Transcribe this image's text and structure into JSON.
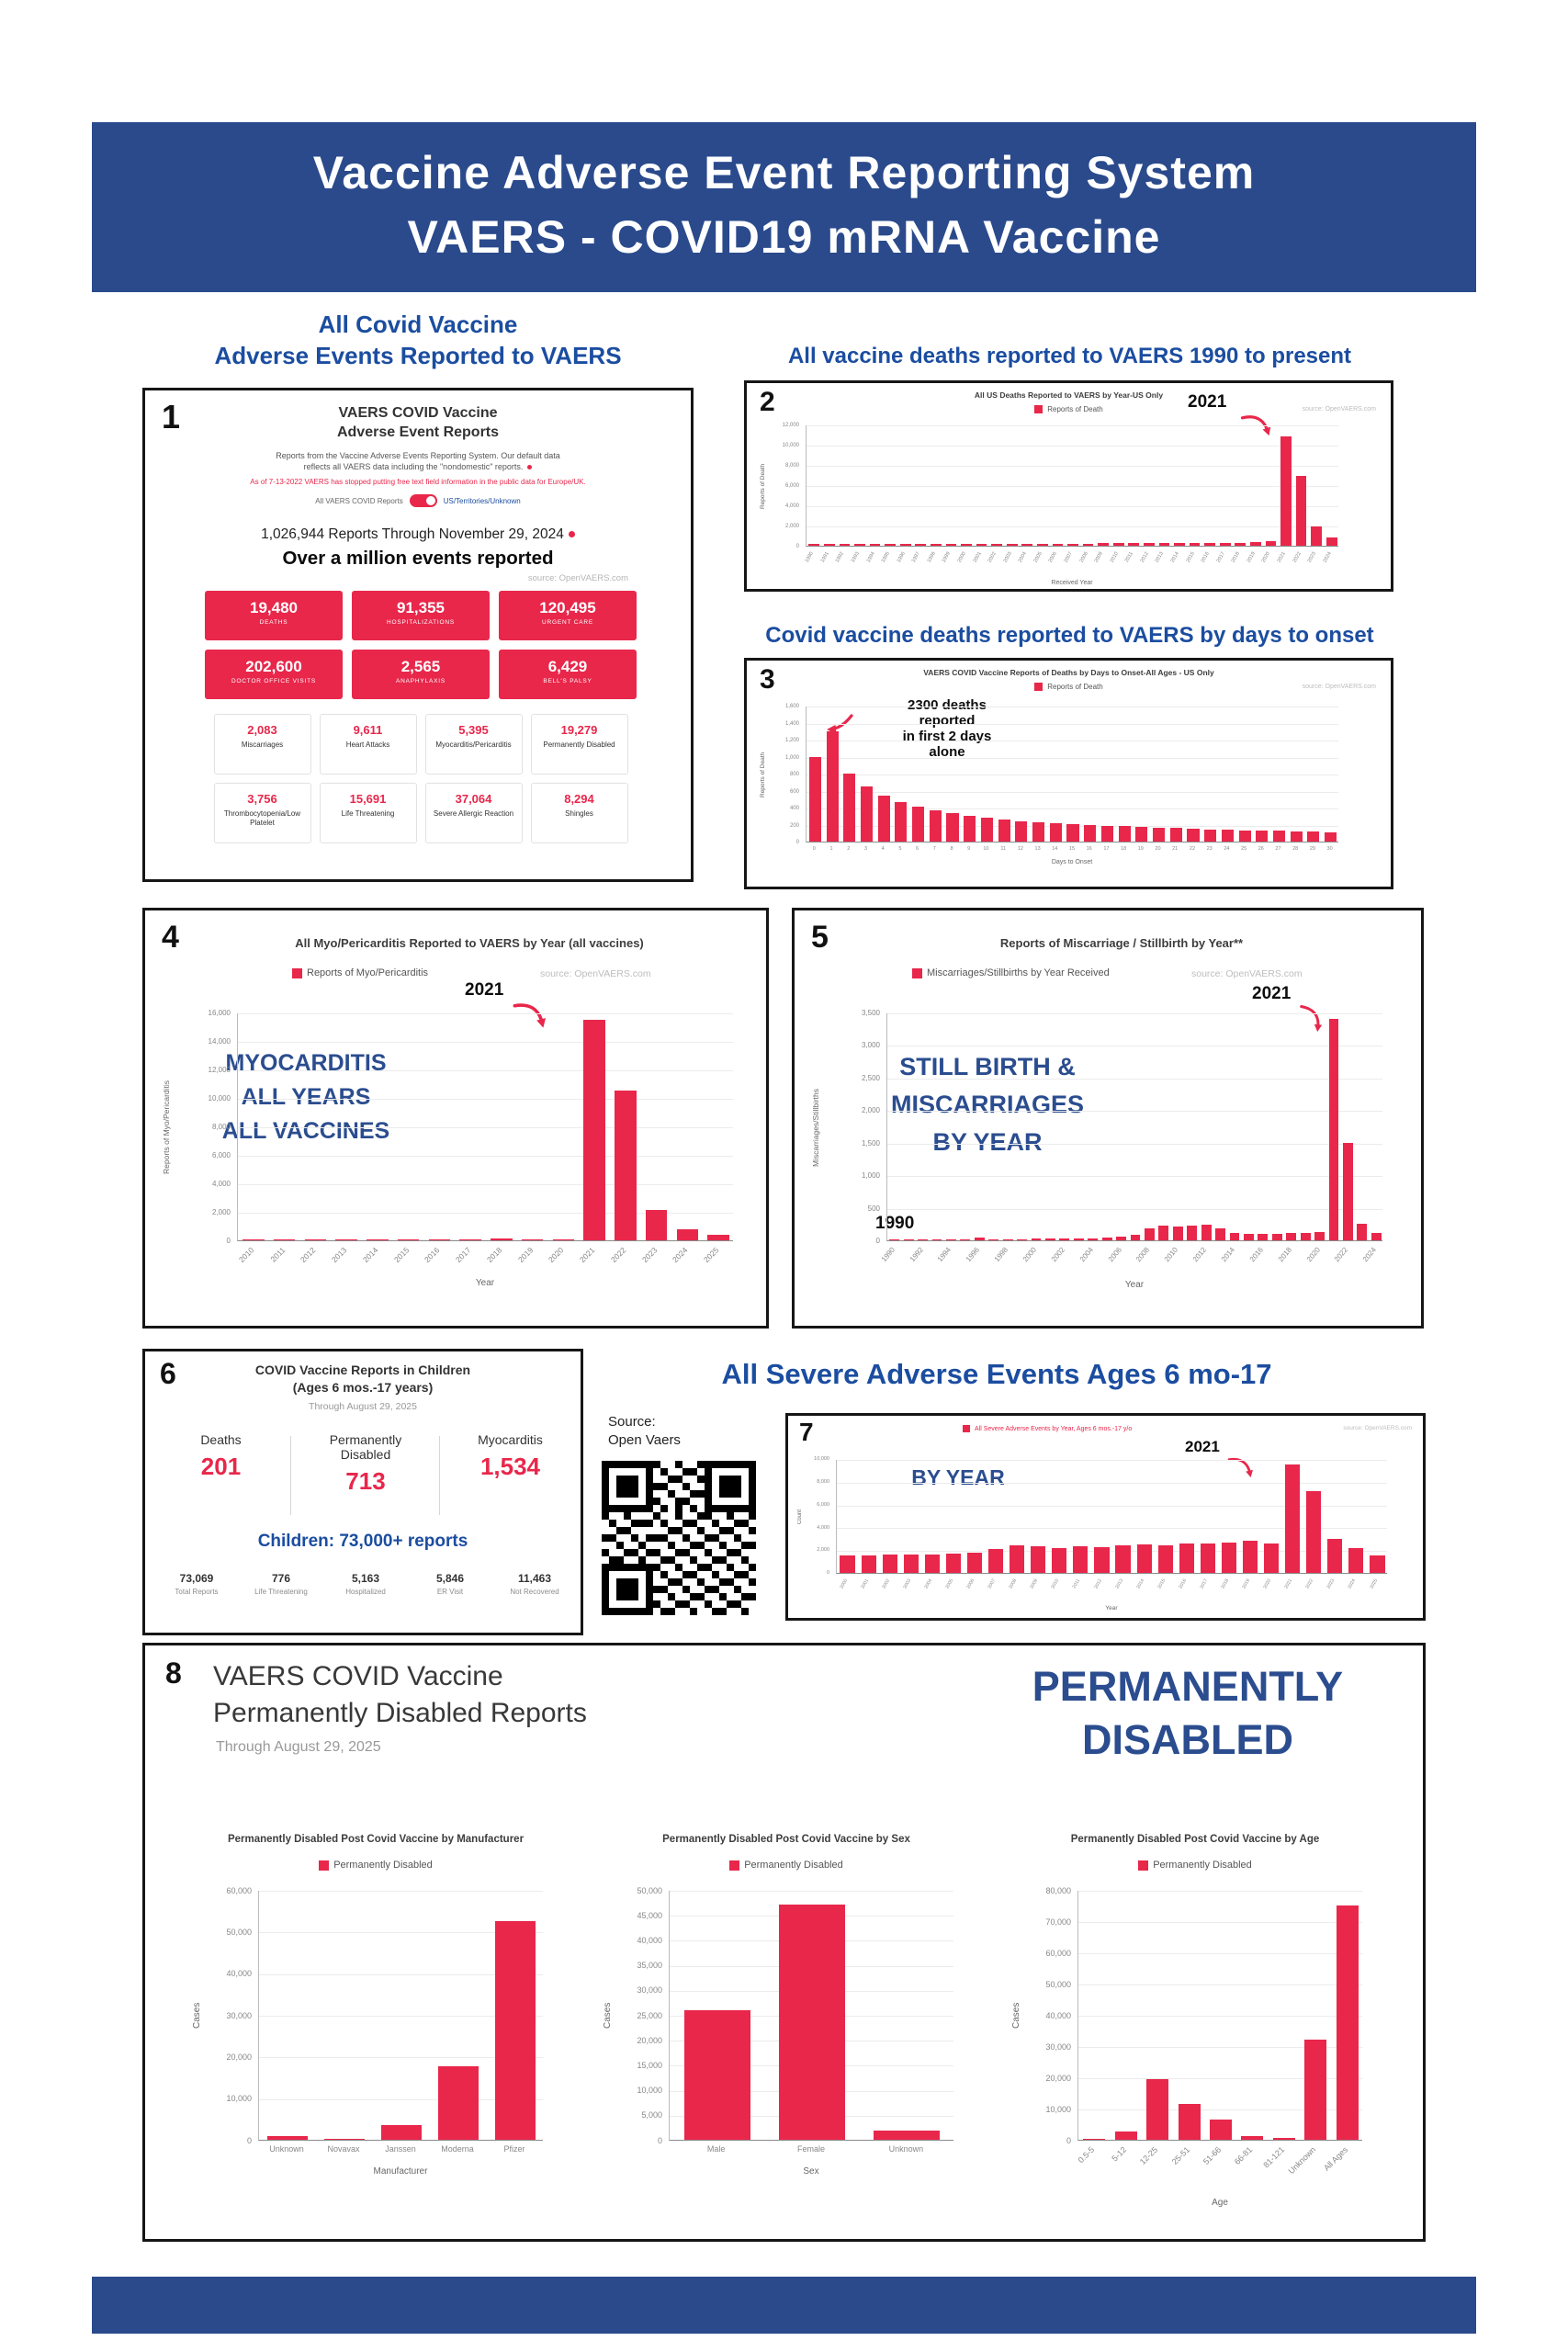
{
  "colors": {
    "banner_blue": "#2a4a8c",
    "heading_blue": "#1b4da0",
    "big_text_blue": "#2b4d8f",
    "accent_red": "#e8274b"
  },
  "header": {
    "line1": "Vaccine Adverse Event Reporting System",
    "line2": "VAERS - COVID19 mRNA Vaccine"
  },
  "panel1": {
    "number": "1",
    "heading_line1": "All Covid Vaccine",
    "heading_line2": "Adverse Events Reported to VAERS",
    "card_title_line1": "VAERS COVID Vaccine",
    "card_title_line2": "Adverse Event Reports",
    "desc_line1": "Reports from the Vaccine Adverse Events Reporting System. Our default data",
    "desc_line2": "reflects all VAERS data including the \"nondomestic\" reports.",
    "red_note": "As of 7-13-2022 VAERS has stopped putting free text field information in the public data for Europe/UK.",
    "toggle_left": "All VAERS COVID Reports",
    "toggle_right": "US/Territories/Unknown",
    "reports_line": "1,026,944 Reports Through November 29, 2024",
    "big_line": "Over a million events reported",
    "source": "source: OpenVAERS.com",
    "big_stats": [
      {
        "value": "19,480",
        "label": "DEATHS"
      },
      {
        "value": "91,355",
        "label": "HOSPITALIZATIONS"
      },
      {
        "value": "120,495",
        "label": "URGENT CARE"
      },
      {
        "value": "202,600",
        "label": "DOCTOR OFFICE VISITS"
      },
      {
        "value": "2,565",
        "label": "ANAPHYLAXIS"
      },
      {
        "value": "6,429",
        "label": "BELL'S PALSY"
      }
    ],
    "small_stats": [
      {
        "value": "2,083",
        "label": "Miscarriages"
      },
      {
        "value": "9,611",
        "label": "Heart Attacks"
      },
      {
        "value": "5,395",
        "label": "Myocarditis/Pericarditis"
      },
      {
        "value": "19,279",
        "label": "Permanently Disabled"
      },
      {
        "value": "3,756",
        "label": "Thrombocytopenia/Low Platelet"
      },
      {
        "value": "15,691",
        "label": "Life Threatening"
      },
      {
        "value": "37,064",
        "label": "Severe Allergic Reaction"
      },
      {
        "value": "8,294",
        "label": "Shingles"
      }
    ]
  },
  "panel2": {
    "number": "2",
    "heading": "All vaccine deaths reported to VAERS 1990 to present"
  },
  "panel3": {
    "number": "3",
    "heading": "Covid vaccine deaths reported to VAERS by days to onset"
  },
  "panel4": {
    "number": "4"
  },
  "panel5": {
    "number": "5"
  },
  "panel6": {
    "number": "6",
    "title_line1": "COVID Vaccine Reports in Children",
    "title_line2": "(Ages 6 mos.-17 years)",
    "through": "Through August 29, 2025",
    "stats": [
      {
        "label": "Deaths",
        "value": "201"
      },
      {
        "label": "Permanently Disabled",
        "value": "713"
      },
      {
        "label": "Myocarditis",
        "value": "1,534"
      }
    ],
    "children_line": "Children: 73,000+ reports",
    "bottom_stats": [
      {
        "value": "73,069",
        "label": "Total Reports"
      },
      {
        "value": "776",
        "label": "Life Threatening"
      },
      {
        "value": "5,163",
        "label": "Hospitalized"
      },
      {
        "value": "5,846",
        "label": "ER Visit"
      },
      {
        "value": "11,463",
        "label": "Not Recovered"
      }
    ]
  },
  "severe": {
    "heading": "All Severe Adverse Events Ages 6 mo-17",
    "source_line1": "Source:",
    "source_line2": "Open Vaers"
  },
  "panel7": {
    "number": "7"
  },
  "panel8": {
    "number": "8",
    "title": "VAERS COVID Vaccine\nPermanently Disabled Reports",
    "through": "Through August 29, 2025",
    "big_text": "PERMANENTLY\nDISABLED"
  },
  "chart_data": [
    {
      "id": "deaths_by_year",
      "type": "bar",
      "title": "All US Deaths Reported to VAERS by Year-US Only",
      "legend": "Reports of Death",
      "source": "source: OpenVAERS.com",
      "xlabel": "Received Year",
      "ylabel": "Reports of Death",
      "ylim": [
        0,
        12000
      ],
      "ystep": 2000,
      "annotation": "2021",
      "categories": [
        "1990",
        "1991",
        "1992",
        "1993",
        "1994",
        "1995",
        "1996",
        "1997",
        "1998",
        "1999",
        "2000",
        "2001",
        "2002",
        "2003",
        "2004",
        "2005",
        "2006",
        "2007",
        "2008",
        "2009",
        "2010",
        "2011",
        "2012",
        "2013",
        "2014",
        "2015",
        "2016",
        "2017",
        "2018",
        "2019",
        "2020",
        "2021",
        "2022",
        "2023",
        "2024"
      ],
      "values": [
        150,
        160,
        170,
        180,
        190,
        180,
        170,
        180,
        190,
        180,
        170,
        180,
        190,
        200,
        200,
        190,
        200,
        210,
        220,
        230,
        240,
        250,
        240,
        250,
        260,
        270,
        280,
        290,
        300,
        350,
        420,
        10800,
        6900,
        1900,
        800
      ]
    },
    {
      "id": "covid_deaths_by_days_to_onset",
      "type": "bar",
      "title": "VAERS COVID Vaccine Reports of Deaths by Days to Onset-All Ages - US Only",
      "legend": "Reports of Death",
      "source": "source: OpenVAERS.com",
      "xlabel": "Days to Onset",
      "ylabel": "Reports of Death",
      "ylim": [
        0,
        1600
      ],
      "ystep": 200,
      "annotation": "2300 deaths\nreported\nin first 2 days\nalone",
      "categories": [
        "0",
        "1",
        "2",
        "3",
        "4",
        "5",
        "6",
        "7",
        "8",
        "9",
        "10",
        "11",
        "12",
        "13",
        "14",
        "15",
        "16",
        "17",
        "18",
        "19",
        "20",
        "21",
        "22",
        "23",
        "24",
        "25",
        "26",
        "27",
        "28",
        "29",
        "30"
      ],
      "values": [
        1000,
        1300,
        800,
        650,
        540,
        470,
        410,
        370,
        330,
        300,
        280,
        260,
        240,
        225,
        215,
        205,
        195,
        185,
        180,
        172,
        165,
        158,
        152,
        146,
        140,
        135,
        130,
        125,
        120,
        115,
        110
      ]
    },
    {
      "id": "myo_pericarditis_by_year",
      "type": "bar",
      "title": "All Myo/Pericarditis Reported to VAERS by Year (all vaccines)",
      "legend": "Reports of Myo/Pericarditis",
      "source": "source: OpenVAERS.com",
      "xlabel": "Year",
      "ylabel": "Reports of Myo/Pericarditis",
      "ylim": [
        0,
        16000
      ],
      "ystep": 2000,
      "annotation": "2021",
      "big_text": "MYOCARDITIS\nALL YEARS\nALL VACCINES",
      "categories": [
        "2010",
        "2011",
        "2012",
        "2013",
        "2014",
        "2015",
        "2016",
        "2017",
        "2018",
        "2019",
        "2020",
        "2021",
        "2022",
        "2023",
        "2024",
        "2025"
      ],
      "values": [
        30,
        30,
        35,
        35,
        40,
        45,
        50,
        60,
        150,
        80,
        90,
        15500,
        10500,
        2100,
        800,
        400
      ]
    },
    {
      "id": "miscarriage_stillbirth_by_year",
      "type": "bar",
      "title": "Reports of Miscarriage / Stillbirth by Year**",
      "legend": "Miscarriages/Stillbirths by Year Received",
      "source": "source: OpenVAERS.com",
      "xlabel": "Year",
      "ylabel": "Miscarriages/Stillbirths",
      "ylim": [
        0,
        3500
      ],
      "ystep": 500,
      "annotation": "2021",
      "annotation2": "1990",
      "big_text": "STILL BIRTH &\nMISCARRIAGES\nBY YEAR",
      "categories": [
        "1990",
        "1991",
        "1992",
        "1993",
        "1994",
        "1995",
        "1996",
        "1997",
        "1998",
        "1999",
        "2000",
        "2001",
        "2002",
        "2003",
        "2004",
        "2005",
        "2006",
        "2007",
        "2008",
        "2009",
        "2010",
        "2011",
        "2012",
        "2013",
        "2014",
        "2015",
        "2016",
        "2017",
        "2018",
        "2019",
        "2020",
        "2021",
        "2022",
        "2023",
        "2024"
      ],
      "values": [
        5,
        8,
        10,
        12,
        10,
        12,
        45,
        15,
        15,
        20,
        25,
        30,
        35,
        30,
        35,
        40,
        60,
        90,
        180,
        230,
        210,
        230,
        240,
        180,
        120,
        100,
        95,
        100,
        110,
        120,
        130,
        3400,
        1500,
        260,
        120
      ]
    },
    {
      "id": "severe_adverse_events_children_by_year",
      "type": "bar",
      "title": "",
      "legend": "All Severe Adverse Events by Year, Ages 6 mos.-17 y/o",
      "source": "source: OpenVAERS.com",
      "xlabel": "Year",
      "ylabel": "Count",
      "ylim": [
        0,
        10000
      ],
      "ystep": 2000,
      "annotation": "2021",
      "big_text": "BY YEAR",
      "categories": [
        "2000",
        "2001",
        "2002",
        "2003",
        "2004",
        "2005",
        "2006",
        "2007",
        "2008",
        "2009",
        "2010",
        "2011",
        "2012",
        "2013",
        "2014",
        "2015",
        "2016",
        "2017",
        "2018",
        "2019",
        "2020",
        "2021",
        "2022",
        "2023",
        "2024",
        "2025"
      ],
      "values": [
        1500,
        1550,
        1600,
        1650,
        1600,
        1700,
        1800,
        2100,
        2400,
        2300,
        2200,
        2300,
        2250,
        2400,
        2500,
        2450,
        2550,
        2600,
        2700,
        2800,
        2600,
        9500,
        7200,
        3000,
        2200,
        1500
      ]
    },
    {
      "id": "permanently_disabled_by_manufacturer",
      "type": "bar",
      "title": "Permanently Disabled Post Covid Vaccine by Manufacturer",
      "legend": "Permanently Disabled",
      "source": "",
      "xlabel": "Manufacturer",
      "ylabel": "Cases",
      "ylim": [
        0,
        60000
      ],
      "ystep": 10000,
      "categories": [
        "Unknown",
        "Novavax",
        "Janssen",
        "Moderna",
        "Pfizer"
      ],
      "values": [
        900,
        60,
        3600,
        17600,
        52600
      ]
    },
    {
      "id": "permanently_disabled_by_sex",
      "type": "bar",
      "title": "Permanently Disabled Post Covid Vaccine by Sex",
      "legend": "Permanently Disabled",
      "source": "",
      "xlabel": "Sex",
      "ylabel": "Cases",
      "ylim": [
        0,
        50000
      ],
      "ystep": 5000,
      "categories": [
        "Male",
        "Female",
        "Unknown"
      ],
      "values": [
        26000,
        47000,
        1800
      ]
    },
    {
      "id": "permanently_disabled_by_age",
      "type": "bar",
      "title": "Permanently Disabled Post Covid Vaccine by Age",
      "legend": "Permanently Disabled",
      "source": "",
      "xlabel": "Age",
      "ylabel": "Cases",
      "ylim": [
        0,
        80000
      ],
      "ystep": 10000,
      "categories": [
        "0.5-5",
        "5-12",
        "12-25",
        "25-51",
        "51-66",
        "66-81",
        "81-121",
        "Unknown",
        "All Ages"
      ],
      "values": [
        400,
        2600,
        19500,
        11500,
        6500,
        1300,
        500,
        32000,
        75000
      ]
    }
  ]
}
